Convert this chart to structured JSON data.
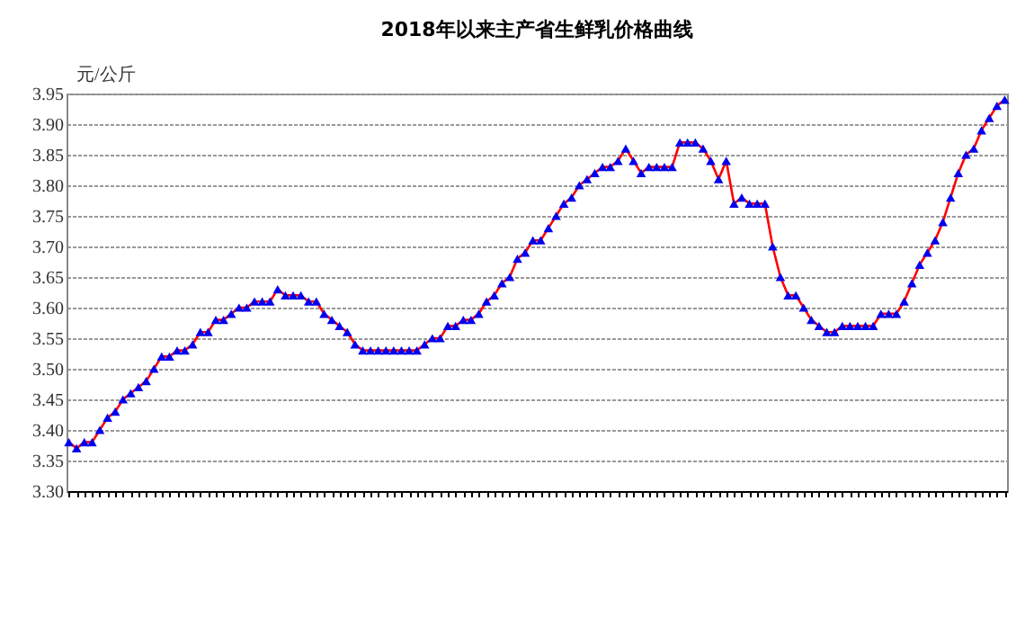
{
  "chart_data": {
    "type": "line",
    "title": "2018年以来主产省生鲜乳价格曲线",
    "ylabel": "元/公斤",
    "categories": [
      null,
      null,
      null,
      null,
      null,
      null,
      null,
      null,
      null,
      null,
      null,
      null,
      null,
      null,
      null,
      null,
      null,
      null,
      null,
      null,
      null,
      null,
      null,
      null,
      null,
      null,
      null,
      null,
      null,
      null,
      null,
      null,
      null,
      null,
      null,
      null,
      null,
      null,
      null,
      null,
      null,
      null,
      null,
      null,
      null,
      null,
      null,
      null,
      null,
      null,
      null,
      null,
      null,
      null,
      null,
      null,
      null,
      null,
      null,
      null,
      null,
      null,
      null,
      null,
      null,
      null,
      null,
      null,
      null,
      null,
      null,
      null,
      null,
      null,
      null,
      null,
      null,
      null,
      null,
      null,
      null,
      null,
      null,
      null,
      null,
      null,
      null,
      null,
      null,
      null,
      null,
      null,
      null,
      null,
      null,
      null,
      null,
      null,
      null,
      null,
      null,
      null,
      null,
      null,
      null,
      null,
      null,
      null,
      null,
      null,
      null,
      null,
      null,
      null,
      null,
      null,
      null,
      null,
      null,
      null,
      null,
      null
    ],
    "series": [
      {
        "color": "#ff0000",
        "values": [
          3.38,
          3.37,
          3.38,
          3.38,
          3.4,
          3.42,
          3.43,
          3.45,
          3.46,
          3.47,
          3.48,
          3.5,
          3.52,
          3.52,
          3.53,
          3.53,
          3.54,
          3.56,
          3.56,
          3.58,
          3.58,
          3.59,
          3.6,
          3.6,
          3.61,
          3.61,
          3.61,
          3.63,
          3.62,
          3.62,
          3.62,
          3.61,
          3.61,
          3.59,
          3.58,
          3.57,
          3.56,
          3.54,
          3.53,
          3.53,
          3.53,
          3.53,
          3.53,
          3.53,
          3.53,
          3.53,
          3.54,
          3.55,
          3.55,
          3.57,
          3.57,
          3.58,
          3.58,
          3.59,
          3.61,
          3.62,
          3.64,
          3.65,
          3.68,
          3.69,
          3.71,
          3.71,
          3.73,
          3.75,
          3.77,
          3.78,
          3.8,
          3.81,
          3.82,
          3.83,
          3.83,
          3.84,
          3.86,
          3.84,
          3.82,
          3.83,
          3.83,
          3.83,
          3.83,
          3.87,
          3.87,
          3.87,
          3.86,
          3.84,
          3.81,
          3.84,
          3.77,
          3.78,
          3.77,
          3.77,
          3.77,
          3.7,
          3.65,
          3.62,
          3.62,
          3.6,
          3.58,
          3.57,
          3.56,
          3.56,
          3.57,
          3.57,
          3.57,
          3.57,
          3.57,
          3.59,
          3.59,
          3.59,
          3.61,
          3.64,
          3.67,
          3.69,
          3.71,
          3.74,
          3.78,
          3.82,
          3.85,
          3.86,
          3.89,
          3.91,
          3.93,
          3.94
        ]
      }
    ],
    "ylim": [
      3.3,
      3.95
    ],
    "yticks": [
      {
        "value": 3.3,
        "label": "3.30"
      },
      {
        "value": 3.35,
        "label": "3.35"
      },
      {
        "value": 3.4,
        "label": "3.40"
      },
      {
        "value": 3.45,
        "label": "3.45"
      },
      {
        "value": 3.5,
        "label": "3.50"
      },
      {
        "value": 3.55,
        "label": "3.55"
      },
      {
        "value": 3.6,
        "label": "3.60"
      },
      {
        "value": 3.65,
        "label": "3.65"
      },
      {
        "value": 3.7,
        "label": "3.70"
      },
      {
        "value": 3.75,
        "label": "3.75"
      },
      {
        "value": 3.8,
        "label": "3.80"
      },
      {
        "value": 3.85,
        "label": "3.85"
      },
      {
        "value": 3.9,
        "label": "3.90"
      },
      {
        "value": 3.95,
        "label": "3.95"
      }
    ],
    "grid": "y",
    "marker": "triangle",
    "line_style": "solid"
  }
}
